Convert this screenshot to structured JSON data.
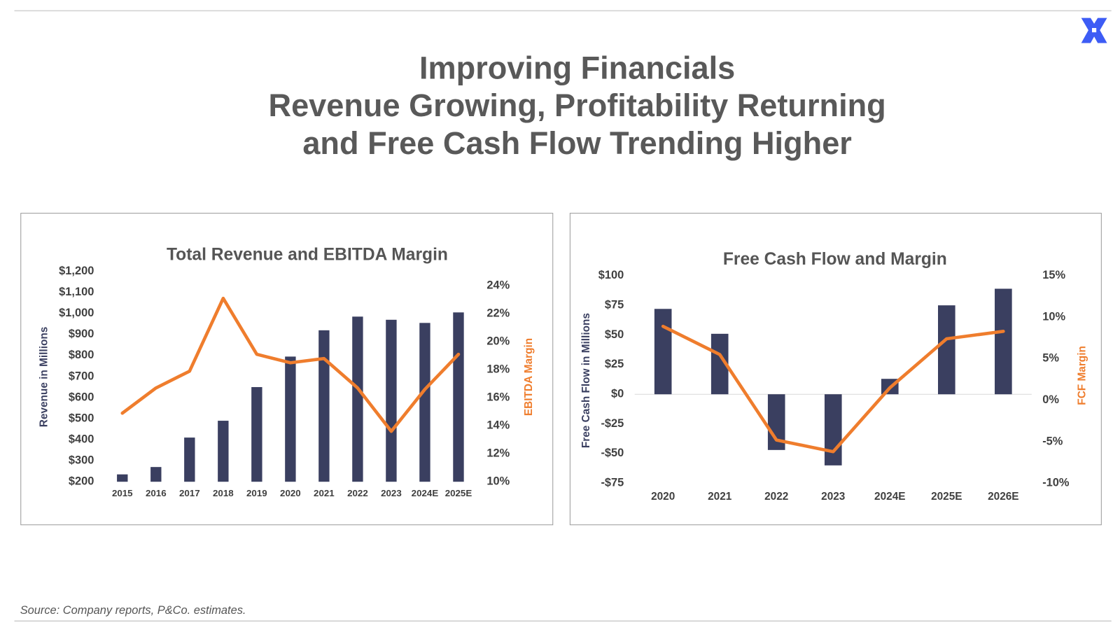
{
  "header": {
    "title": [
      "Improving Financials",
      "Revenue Growing, Profitability Returning",
      "and Free Cash Flow Trending Higher"
    ]
  },
  "source": "Source: Company reports, P&Co. estimates.",
  "chart_data": [
    {
      "type": "bar_line",
      "title": "Total Revenue and EBITDA Margin",
      "y_label": "Revenue in Millions",
      "y2_label": "EBITDA Margin",
      "categories": [
        "2015",
        "2016",
        "2017",
        "2018",
        "2019",
        "2020",
        "2021",
        "2022",
        "2023",
        "2024E",
        "2025E"
      ],
      "series": [
        {
          "color": "#3a3f60",
          "values": [
            235,
            270,
            410,
            490,
            650,
            795,
            920,
            985,
            970,
            955,
            1005
          ]
        },
        {
          "color": "#ef7d2d",
          "axis": "y2",
          "values": [
            14.9,
            16.7,
            17.9,
            23.1,
            19.1,
            18.5,
            18.8,
            16.7,
            13.6,
            16.6,
            19.1
          ]
        }
      ],
      "ylim": [
        200,
        1200
      ],
      "yticks": [
        {
          "value": 200,
          "label": "$200"
        },
        {
          "value": 300,
          "label": "$300"
        },
        {
          "value": 400,
          "label": "$400"
        },
        {
          "value": 500,
          "label": "$500"
        },
        {
          "value": 600,
          "label": "$600"
        },
        {
          "value": 700,
          "label": "$700"
        },
        {
          "value": 800,
          "label": "$800"
        },
        {
          "value": 900,
          "label": "$900"
        },
        {
          "value": 1000,
          "label": "$1,000"
        },
        {
          "value": 1100,
          "label": "$1,100"
        },
        {
          "value": 1200,
          "label": "$1,200"
        }
      ],
      "y2lim": [
        10,
        24
      ],
      "y2ticks": [
        {
          "value": 10,
          "label": "10%"
        },
        {
          "value": 12,
          "label": "12%"
        },
        {
          "value": 14,
          "label": "14%"
        },
        {
          "value": 16,
          "label": "16%"
        },
        {
          "value": 18,
          "label": "18%"
        },
        {
          "value": 20,
          "label": "20%"
        },
        {
          "value": 22,
          "label": "22%"
        },
        {
          "value": 24,
          "label": "24%"
        }
      ],
      "grid": false,
      "zero_line": false
    },
    {
      "type": "bar_line",
      "title": "Free Cash Flow and Margin",
      "y_label": "Free Cash Flow in Millions",
      "y2_label": "FCF Margin",
      "categories": [
        "2020",
        "2021",
        "2022",
        "2023",
        "2024E",
        "2025E",
        "2026E"
      ],
      "series": [
        {
          "color": "#3a3f60",
          "values": [
            72,
            51,
            -47,
            -60,
            13,
            75,
            89
          ]
        },
        {
          "color": "#ef7d2d",
          "axis": "y2",
          "values": [
            8.9,
            5.5,
            -4.8,
            -6.2,
            1.5,
            7.4,
            8.3
          ]
        }
      ],
      "ylim": [
        -75,
        100
      ],
      "yticks": [
        {
          "value": -75,
          "label": "-$75"
        },
        {
          "value": -50,
          "label": "-$50"
        },
        {
          "value": -25,
          "label": "-$25"
        },
        {
          "value": 0,
          "label": "$0"
        },
        {
          "value": 25,
          "label": "$25"
        },
        {
          "value": 50,
          "label": "$50"
        },
        {
          "value": 75,
          "label": "$75"
        },
        {
          "value": 100,
          "label": "$100"
        }
      ],
      "y2lim": [
        -10,
        15
      ],
      "y2ticks": [
        {
          "value": -10,
          "label": "-10%"
        },
        {
          "value": -5,
          "label": "-5%"
        },
        {
          "value": 0,
          "label": "0%"
        },
        {
          "value": 5,
          "label": "5%"
        },
        {
          "value": 10,
          "label": "10%"
        },
        {
          "value": 15,
          "label": "15%"
        }
      ],
      "grid": false,
      "zero_line": true
    }
  ]
}
